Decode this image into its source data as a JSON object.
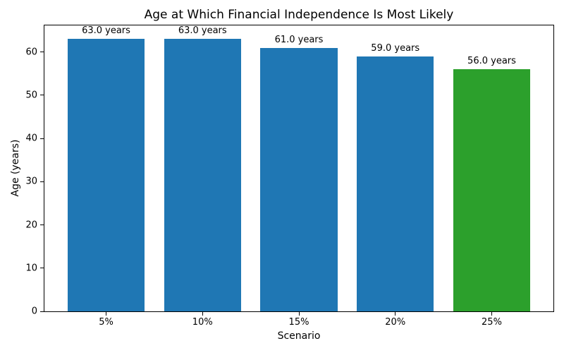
{
  "chart_data": {
    "type": "bar",
    "title": "Age at Which Financial Independence Is Most Likely",
    "xlabel": "Scenario",
    "ylabel": "Age (years)",
    "categories": [
      "5%",
      "10%",
      "15%",
      "20%",
      "25%"
    ],
    "values": [
      63.0,
      63.0,
      61.0,
      59.0,
      56.0
    ],
    "value_labels": [
      "63.0 years",
      "63.0 years",
      "61.0 years",
      "59.0 years",
      "56.0 years"
    ],
    "bar_colors": [
      "#1f77b4",
      "#1f77b4",
      "#1f77b4",
      "#1f77b4",
      "#2ca02c"
    ],
    "yticks": [
      0,
      10,
      20,
      30,
      40,
      50,
      60
    ],
    "ylim": [
      0,
      66.15
    ],
    "grid": false,
    "legend_position": "none",
    "axis_color": "#000000",
    "background_color": "#ffffff"
  }
}
